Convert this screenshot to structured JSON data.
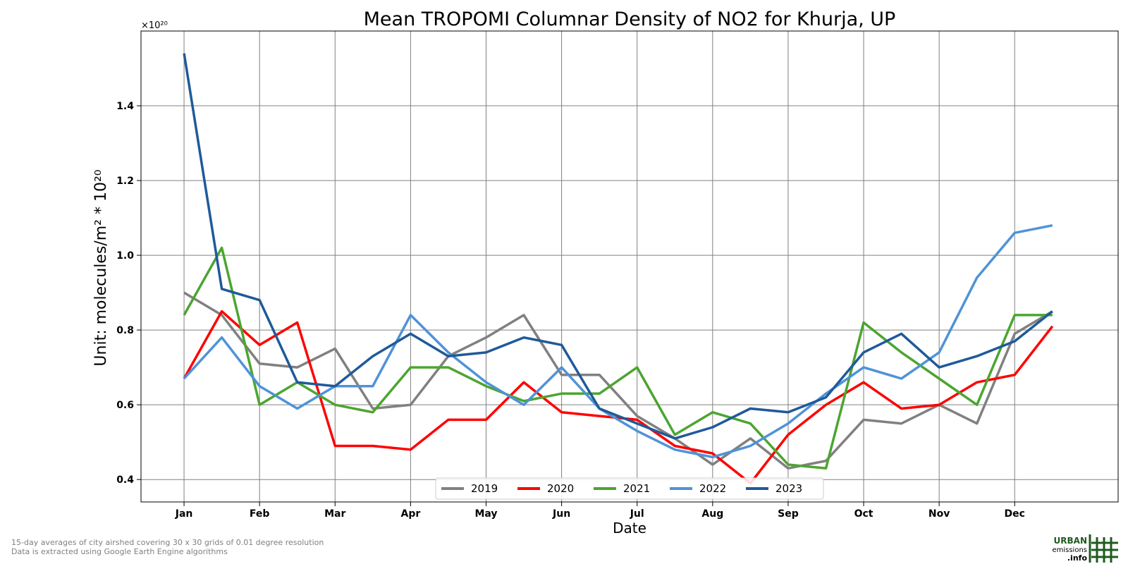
{
  "chart_data": {
    "type": "line",
    "title": "Mean TROPOMI Columnar Density of NO2 for Khurja, UP",
    "xlabel": "Date",
    "ylabel": "Unit: molecules/m² * 10²⁰",
    "y_multiplier": "×10²⁰",
    "ylim": [
      0.34,
      1.6
    ],
    "yticks": [
      0.4,
      0.6,
      0.8,
      1.0,
      1.2,
      1.4
    ],
    "ytick_labels": [
      "0.4",
      "0.6",
      "0.8",
      "1.0",
      "1.2",
      "1.4"
    ],
    "xlim": [
      -0.57,
      12.37
    ],
    "xtick_positions": [
      0,
      1,
      2,
      3,
      4,
      5,
      6,
      7,
      8,
      9,
      10,
      11
    ],
    "xtick_labels": [
      "Jan",
      "Feb",
      "Mar",
      "Apr",
      "May",
      "Jun",
      "Jul",
      "Aug",
      "Sep",
      "Oct",
      "Nov",
      "Dec"
    ],
    "x": [
      0,
      0.5,
      1,
      1.5,
      2,
      2.5,
      3,
      3.5,
      4,
      4.5,
      5,
      5.5,
      6,
      6.5,
      7,
      7.5,
      8,
      8.5,
      9,
      9.5,
      10,
      10.5,
      11,
      11.5
    ],
    "grid": true,
    "legend_position": "bottom-center",
    "series": [
      {
        "name": "2019",
        "color": "#808080",
        "values": [
          0.9,
          0.84,
          0.71,
          0.7,
          0.75,
          0.59,
          0.6,
          0.73,
          0.78,
          0.84,
          0.68,
          0.68,
          0.57,
          0.51,
          0.44,
          0.51,
          0.43,
          0.45,
          0.56,
          0.55,
          0.6,
          0.55,
          0.79,
          0.85
        ]
      },
      {
        "name": "2020",
        "color": "#ff0000",
        "values": [
          0.67,
          0.85,
          0.76,
          0.82,
          0.49,
          0.49,
          0.48,
          0.56,
          0.56,
          0.66,
          0.58,
          0.57,
          0.56,
          0.49,
          0.47,
          0.39,
          0.52,
          0.6,
          0.66,
          0.59,
          0.6,
          0.66,
          0.68,
          0.81
        ]
      },
      {
        "name": "2021",
        "color": "#4ca530",
        "values": [
          0.84,
          1.02,
          0.6,
          0.66,
          0.6,
          0.58,
          0.7,
          0.7,
          0.65,
          0.61,
          0.63,
          0.63,
          0.7,
          0.52,
          0.58,
          0.55,
          0.44,
          0.43,
          0.82,
          0.74,
          0.67,
          0.6,
          0.84,
          0.84
        ]
      },
      {
        "name": "2022",
        "color": "#4f93d8",
        "values": [
          0.67,
          0.78,
          0.65,
          0.59,
          0.65,
          0.65,
          0.84,
          0.74,
          0.66,
          0.6,
          0.7,
          0.59,
          0.53,
          0.48,
          0.46,
          0.49,
          0.55,
          0.63,
          0.7,
          0.67,
          0.74,
          0.94,
          1.06,
          1.08
        ]
      },
      {
        "name": "2023",
        "color": "#1f5a99",
        "values": [
          1.54,
          0.91,
          0.88,
          0.66,
          0.65,
          0.73,
          0.79,
          0.73,
          0.74,
          0.78,
          0.76,
          0.59,
          0.55,
          0.51,
          0.54,
          0.59,
          0.58,
          0.62,
          0.74,
          0.79,
          0.7,
          0.73,
          0.77,
          0.85
        ]
      }
    ]
  },
  "notes": {
    "line1": "15-day averages of city airshed covering 30 x 30 grids of 0.01 degree resolution",
    "line2": "Data is extracted using Google Earth Engine algorithms"
  },
  "logo": {
    "line1": "URBAN",
    "line2": "emissions",
    "line3": ".info",
    "color": "#1f5a1f"
  }
}
